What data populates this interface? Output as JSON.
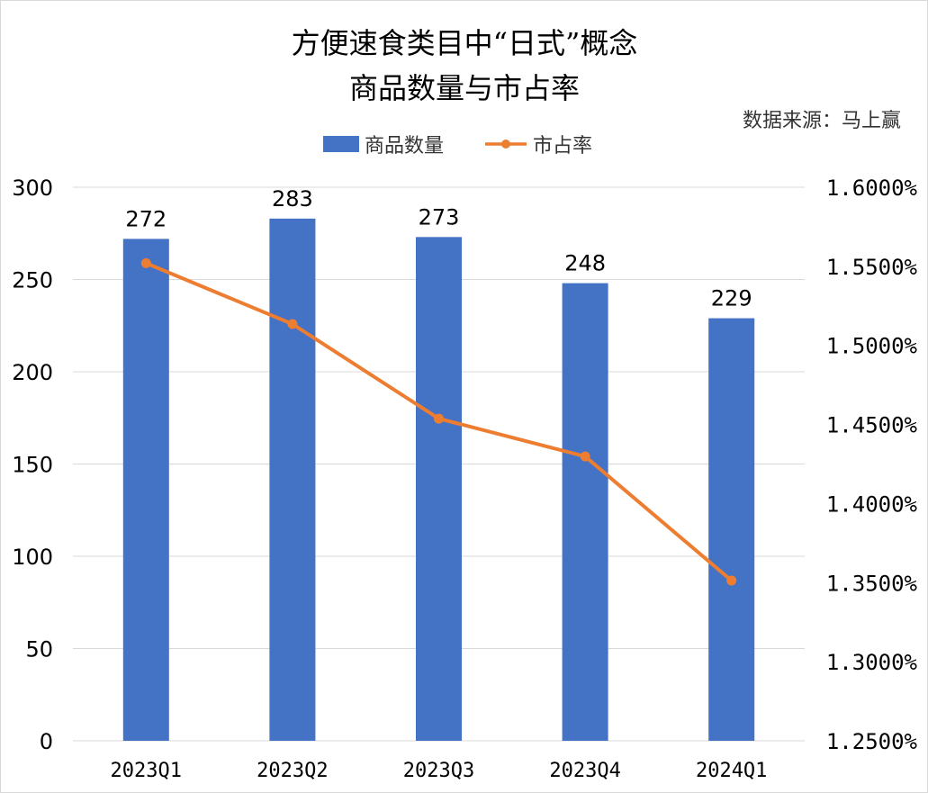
{
  "chart_data": {
    "type": "bar+line",
    "title_lines": [
      "方便速食类目中“日式”概念",
      "商品数量与市占率"
    ],
    "source": "数据来源：马上赢",
    "categories": [
      "2023Q1",
      "2023Q2",
      "2023Q3",
      "2023Q4",
      "2024Q1"
    ],
    "series": [
      {
        "name": "商品数量",
        "type": "bar",
        "axis": "left",
        "color": "#4472C4",
        "values": [
          272,
          283,
          273,
          248,
          229
        ]
      },
      {
        "name": "市占率",
        "type": "line",
        "axis": "right",
        "color": "#ED7D31",
        "values": [
          1.552,
          1.5135,
          1.4537,
          1.4298,
          1.3513
        ]
      }
    ],
    "left_axis": {
      "ylim": [
        0,
        300
      ],
      "ticks": [
        "0",
        "50",
        "100",
        "150",
        "200",
        "250",
        "300"
      ]
    },
    "right_axis": {
      "ylim": [
        1.25,
        1.6
      ],
      "ticks": [
        "1.2500%",
        "1.3000%",
        "1.3500%",
        "1.4000%",
        "1.4500%",
        "1.5000%",
        "1.5500%",
        "1.6000%"
      ]
    },
    "legend_placement": "top",
    "grid": true
  }
}
